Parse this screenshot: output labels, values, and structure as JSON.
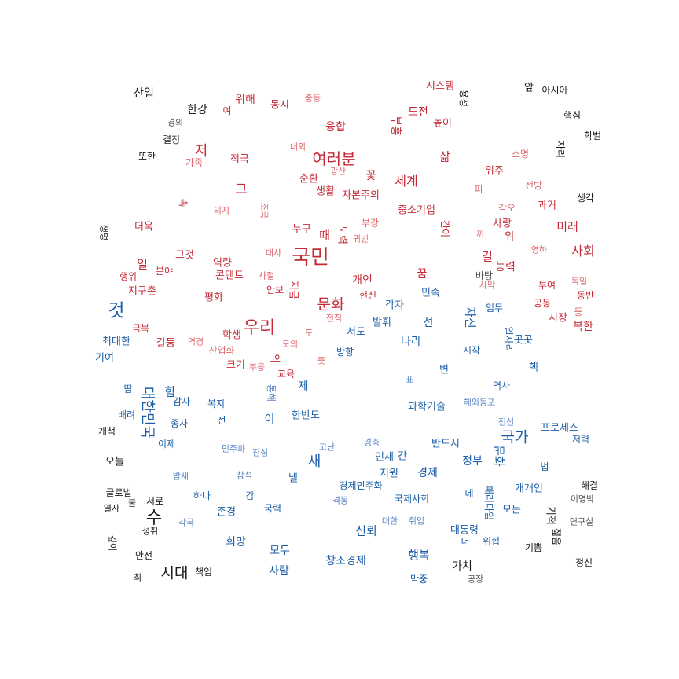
{
  "colors": {
    "red_strong": "#c42a36",
    "red_light": "#de6a70",
    "blue_strong": "#1c5ea8",
    "blue_light": "#5b86c2",
    "neutral": "#1a1a1a",
    "neutral_light": "#555555"
  },
  "words": [
    {
      "t": "국민",
      "c": "red_strong",
      "s": 26
    },
    {
      "t": "우리",
      "c": "red_strong",
      "s": 22
    },
    {
      "t": "여러분",
      "c": "red_strong",
      "s": 20
    },
    {
      "t": "문화",
      "c": "red_strong",
      "s": 19
    },
    {
      "t": "것",
      "c": "blue_strong",
      "s": 23
    },
    {
      "t": "수",
      "c": "neutral",
      "s": 22
    },
    {
      "t": "시대",
      "c": "neutral",
      "s": 19
    },
    {
      "t": "국가",
      "c": "blue_strong",
      "s": 19
    },
    {
      "t": "새",
      "c": "blue_strong",
      "s": 18
    },
    {
      "t": "세계",
      "c": "red_strong",
      "s": 16
    },
    {
      "t": "저",
      "c": "red_strong",
      "s": 18
    },
    {
      "t": "사회",
      "c": "red_strong",
      "s": 16
    },
    {
      "t": "그",
      "c": "red_strong",
      "s": 17
    },
    {
      "t": "삶",
      "c": "red_strong",
      "s": 15
    },
    {
      "t": "도전",
      "c": "red_strong",
      "s": 14
    },
    {
      "t": "위해",
      "c": "red_strong",
      "s": 14
    },
    {
      "t": "융합",
      "c": "red_strong",
      "s": 14
    },
    {
      "t": "시스템",
      "c": "red_strong",
      "s": 13
    },
    {
      "t": "동시",
      "c": "red_strong",
      "s": 13
    },
    {
      "t": "중동",
      "c": "red_light",
      "s": 11
    },
    {
      "t": "높이",
      "c": "red_strong",
      "s": 13
    },
    {
      "t": "적극",
      "c": "red_strong",
      "s": 13
    },
    {
      "t": "가족",
      "c": "red_light",
      "s": 12
    },
    {
      "t": "내외",
      "c": "red_light",
      "s": 11
    },
    {
      "t": "소명",
      "c": "red_light",
      "s": 12
    },
    {
      "t": "순환",
      "c": "red_strong",
      "s": 13
    },
    {
      "t": "광산",
      "c": "red_light",
      "s": 11
    },
    {
      "t": "꽃",
      "c": "red_strong",
      "s": 14
    },
    {
      "t": "위주",
      "c": "red_strong",
      "s": 13
    },
    {
      "t": "생활",
      "c": "red_strong",
      "s": 13
    },
    {
      "t": "자본주의",
      "c": "red_strong",
      "s": 13
    },
    {
      "t": "전방",
      "c": "red_light",
      "s": 12
    },
    {
      "t": "피",
      "c": "red_light",
      "s": 12
    },
    {
      "t": "과거",
      "c": "red_strong",
      "s": 13
    },
    {
      "t": "의지",
      "c": "red_light",
      "s": 11
    },
    {
      "t": "각오",
      "c": "red_light",
      "s": 12
    },
    {
      "t": "중소기업",
      "c": "red_strong",
      "s": 13
    },
    {
      "t": "부강",
      "c": "red_light",
      "s": 12
    },
    {
      "t": "사랑",
      "c": "red_strong",
      "s": 13
    },
    {
      "t": "미래",
      "c": "red_strong",
      "s": 15
    },
    {
      "t": "더욱",
      "c": "red_strong",
      "s": 13
    },
    {
      "t": "누구",
      "c": "red_strong",
      "s": 13
    },
    {
      "t": "때",
      "c": "red_strong",
      "s": 15
    },
    {
      "t": "귀빈",
      "c": "red_light",
      "s": 11
    },
    {
      "t": "끼",
      "c": "red_light",
      "s": 11
    },
    {
      "t": "위",
      "c": "red_strong",
      "s": 14
    },
    {
      "t": "대사",
      "c": "red_light",
      "s": 11
    },
    {
      "t": "그것",
      "c": "red_strong",
      "s": 13
    },
    {
      "t": "영하",
      "c": "red_light",
      "s": 11
    },
    {
      "t": "일",
      "c": "red_strong",
      "s": 15
    },
    {
      "t": "역량",
      "c": "red_strong",
      "s": 13
    },
    {
      "t": "길",
      "c": "red_strong",
      "s": 15
    },
    {
      "t": "능력",
      "c": "red_strong",
      "s": 14
    },
    {
      "t": "행위",
      "c": "red_strong",
      "s": 12
    },
    {
      "t": "분야",
      "c": "red_strong",
      "s": 12
    },
    {
      "t": "콘텐트",
      "c": "red_strong",
      "s": 13
    },
    {
      "t": "사절",
      "c": "red_light",
      "s": 11
    },
    {
      "t": "꿈",
      "c": "red_strong",
      "s": 14
    },
    {
      "t": "바탕",
      "c": "neutral_light",
      "s": 12
    },
    {
      "t": "사막",
      "c": "red_light",
      "s": 11
    },
    {
      "t": "독일",
      "c": "red_light",
      "s": 11
    },
    {
      "t": "개인",
      "c": "red_strong",
      "s": 14
    },
    {
      "t": "부여",
      "c": "red_strong",
      "s": 12
    },
    {
      "t": "지구촌",
      "c": "red_strong",
      "s": 13
    },
    {
      "t": "안보",
      "c": "red_strong",
      "s": 12
    },
    {
      "t": "현신",
      "c": "red_strong",
      "s": 12
    },
    {
      "t": "동반",
      "c": "red_strong",
      "s": 12
    },
    {
      "t": "평화",
      "c": "red_strong",
      "s": 13
    },
    {
      "t": "공동",
      "c": "red_strong",
      "s": 12
    },
    {
      "t": "임무",
      "c": "blue_strong",
      "s": 12
    },
    {
      "t": "등",
      "c": "red_light",
      "s": 12
    },
    {
      "t": "시장",
      "c": "red_strong",
      "s": 13
    },
    {
      "t": "극복",
      "c": "red_strong",
      "s": 12
    },
    {
      "t": "전직",
      "c": "red_light",
      "s": 11
    },
    {
      "t": "북한",
      "c": "red_strong",
      "s": 14
    },
    {
      "t": "학생",
      "c": "red_strong",
      "s": 13
    },
    {
      "t": "도",
      "c": "red_light",
      "s": 12
    },
    {
      "t": "서도",
      "c": "blue_strong",
      "s": 13
    },
    {
      "t": "최대한",
      "c": "blue_strong",
      "s": 13
    },
    {
      "t": "갈등",
      "c": "red_strong",
      "s": 13
    },
    {
      "t": "역경",
      "c": "red_light",
      "s": 11
    },
    {
      "t": "산업화",
      "c": "red_light",
      "s": 12
    },
    {
      "t": "도의",
      "c": "red_light",
      "s": 11
    },
    {
      "t": "방향",
      "c": "blue_strong",
      "s": 12
    },
    {
      "t": "시작",
      "c": "blue_strong",
      "s": 12
    },
    {
      "t": "곳곳",
      "c": "blue_strong",
      "s": 13
    },
    {
      "t": "크기",
      "c": "red_strong",
      "s": 13
    },
    {
      "t": "부응",
      "c": "red_light",
      "s": 11
    },
    {
      "t": "뜻",
      "c": "red_light",
      "s": 11
    },
    {
      "t": "기여",
      "c": "blue_strong",
      "s": 13
    },
    {
      "t": "핵",
      "c": "blue_strong",
      "s": 13
    },
    {
      "t": "교육",
      "c": "red_strong",
      "s": 12
    },
    {
      "t": "변",
      "c": "blue_strong",
      "s": 13
    },
    {
      "t": "표",
      "c": "blue_light",
      "s": 11
    },
    {
      "t": "역사",
      "c": "blue_strong",
      "s": 12
    },
    {
      "t": "땀",
      "c": "blue_strong",
      "s": 12
    },
    {
      "t": "힘",
      "c": "blue_strong",
      "s": 15
    },
    {
      "t": "제",
      "c": "blue_strong",
      "s": 14
    },
    {
      "t": "감사",
      "c": "blue_strong",
      "s": 12
    },
    {
      "t": "복지",
      "c": "blue_strong",
      "s": 12
    },
    {
      "t": "과학기술",
      "c": "blue_strong",
      "s": 13
    },
    {
      "t": "해외동포",
      "c": "blue_light",
      "s": 11
    },
    {
      "t": "배려",
      "c": "blue_strong",
      "s": 12
    },
    {
      "t": "한반도",
      "c": "blue_strong",
      "s": 13
    },
    {
      "t": "이",
      "c": "blue_strong",
      "s": 14
    },
    {
      "t": "전",
      "c": "blue_strong",
      "s": 12
    },
    {
      "t": "종사",
      "c": "blue_strong",
      "s": 12
    },
    {
      "t": "전선",
      "c": "blue_light",
      "s": 11
    },
    {
      "t": "프로세스",
      "c": "blue_strong",
      "s": 13
    },
    {
      "t": "개척",
      "c": "neutral",
      "s": 12
    },
    {
      "t": "이제",
      "c": "blue_strong",
      "s": 12
    },
    {
      "t": "저력",
      "c": "blue_strong",
      "s": 12
    },
    {
      "t": "민주화",
      "c": "blue_light",
      "s": 11
    },
    {
      "t": "진심",
      "c": "blue_light",
      "s": 11
    },
    {
      "t": "고난",
      "c": "blue_light",
      "s": 11
    },
    {
      "t": "경축",
      "c": "blue_light",
      "s": 11
    },
    {
      "t": "반드시",
      "c": "blue_strong",
      "s": 13
    },
    {
      "t": "오늘",
      "c": "neutral",
      "s": 13
    },
    {
      "t": "인재",
      "c": "blue_strong",
      "s": 13
    },
    {
      "t": "간",
      "c": "blue_strong",
      "s": 13
    },
    {
      "t": "정부",
      "c": "blue_strong",
      "s": 14
    },
    {
      "t": "법",
      "c": "blue_strong",
      "s": 12
    },
    {
      "t": "밤새",
      "c": "blue_light",
      "s": 11
    },
    {
      "t": "참석",
      "c": "blue_light",
      "s": 11
    },
    {
      "t": "낼",
      "c": "blue_strong",
      "s": 13
    },
    {
      "t": "지원",
      "c": "blue_strong",
      "s": 13
    },
    {
      "t": "경제",
      "c": "blue_strong",
      "s": 14
    },
    {
      "t": "해결",
      "c": "neutral",
      "s": 12
    },
    {
      "t": "경제민주화",
      "c": "blue_strong",
      "s": 12
    },
    {
      "t": "개개인",
      "c": "blue_strong",
      "s": 13
    },
    {
      "t": "글로벌",
      "c": "neutral",
      "s": 12
    },
    {
      "t": "하나",
      "c": "blue_strong",
      "s": 12
    },
    {
      "t": "감",
      "c": "blue_strong",
      "s": 12
    },
    {
      "t": "데",
      "c": "blue_strong",
      "s": 12
    },
    {
      "t": "이명박",
      "c": "neutral_light",
      "s": 11
    },
    {
      "t": "열사",
      "c": "neutral",
      "s": 11
    },
    {
      "t": "불",
      "c": "neutral",
      "s": 11
    },
    {
      "t": "서로",
      "c": "neutral",
      "s": 12
    },
    {
      "t": "격동",
      "c": "blue_light",
      "s": 11
    },
    {
      "t": "국제사회",
      "c": "blue_strong",
      "s": 12
    },
    {
      "t": "모든",
      "c": "blue_strong",
      "s": 13
    },
    {
      "t": "존경",
      "c": "blue_strong",
      "s": 13
    },
    {
      "t": "국력",
      "c": "blue_strong",
      "s": 12
    },
    {
      "t": "각국",
      "c": "blue_light",
      "s": 11
    },
    {
      "t": "대한",
      "c": "blue_light",
      "s": 11
    },
    {
      "t": "취임",
      "c": "blue_light",
      "s": 11
    },
    {
      "t": "연구실",
      "c": "neutral_light",
      "s": 11
    },
    {
      "t": "성취",
      "c": "neutral",
      "s": 11
    },
    {
      "t": "신뢰",
      "c": "blue_strong",
      "s": 15
    },
    {
      "t": "대통령",
      "c": "blue_strong",
      "s": 13
    },
    {
      "t": "희망",
      "c": "blue_strong",
      "s": 14
    },
    {
      "t": "더",
      "c": "blue_strong",
      "s": 12
    },
    {
      "t": "위협",
      "c": "blue_strong",
      "s": 12
    },
    {
      "t": "기쁨",
      "c": "neutral",
      "s": 12
    },
    {
      "t": "모두",
      "c": "blue_strong",
      "s": 14
    },
    {
      "t": "행복",
      "c": "blue_strong",
      "s": 15
    },
    {
      "t": "안전",
      "c": "neutral",
      "s": 12
    },
    {
      "t": "창조경제",
      "c": "blue_strong",
      "s": 14
    },
    {
      "t": "정신",
      "c": "neutral",
      "s": 12
    },
    {
      "t": "책임",
      "c": "neutral",
      "s": 12
    },
    {
      "t": "사람",
      "c": "blue_strong",
      "s": 14
    },
    {
      "t": "가치",
      "c": "neutral",
      "s": 14
    },
    {
      "t": "최",
      "c": "neutral",
      "s": 11
    },
    {
      "t": "막중",
      "c": "blue_strong",
      "s": 12
    },
    {
      "t": "공장",
      "c": "neutral_light",
      "s": 11
    },
    {
      "t": "산업",
      "c": "neutral",
      "s": 14
    },
    {
      "t": "한강",
      "c": "neutral",
      "s": 14
    },
    {
      "t": "여",
      "c": "red_strong",
      "s": 12
    },
    {
      "t": "경의",
      "c": "neutral_light",
      "s": 11
    },
    {
      "t": "결정",
      "c": "neutral",
      "s": 12
    },
    {
      "t": "또한",
      "c": "neutral",
      "s": 12
    },
    {
      "t": "앞",
      "c": "neutral",
      "s": 13
    },
    {
      "t": "아시아",
      "c": "neutral",
      "s": 12
    },
    {
      "t": "핵심",
      "c": "neutral",
      "s": 12
    },
    {
      "t": "학벌",
      "c": "neutral",
      "s": 12
    },
    {
      "t": "생각",
      "c": "neutral",
      "s": 12
    },
    {
      "t": "자리",
      "c": "neutral",
      "s": 12
    },
    {
      "t": "용성",
      "c": "neutral",
      "s": 12
    },
    {
      "t": "부흥",
      "c": "red_strong",
      "s": 14
    },
    {
      "t": "생명",
      "c": "neutral",
      "s": 11
    },
    {
      "t": "속",
      "c": "red_strong",
      "s": 12
    },
    {
      "t": "조국",
      "c": "red_light",
      "s": 11
    },
    {
      "t": "간이",
      "c": "red_strong",
      "s": 12
    },
    {
      "t": "노력",
      "c": "red_strong",
      "s": 13
    },
    {
      "t": "지금",
      "c": "red_strong",
      "s": 13
    },
    {
      "t": "자신",
      "c": "blue_strong",
      "s": 15
    },
    {
      "t": "일자리",
      "c": "blue_strong",
      "s": 12
    },
    {
      "t": "의",
      "c": "red_strong",
      "s": 13
    },
    {
      "t": "통해",
      "c": "blue_light",
      "s": 12
    },
    {
      "t": "대한민국",
      "c": "blue_strong",
      "s": 18
    },
    {
      "t": "문화",
      "c": "blue_strong",
      "s": 15
    },
    {
      "t": "패러다임",
      "c": "blue_strong",
      "s": 12
    },
    {
      "t": "기적",
      "c": "neutral",
      "s": 13
    },
    {
      "t": "젊음",
      "c": "neutral",
      "s": 12
    },
    {
      "t": "깊이",
      "c": "neutral",
      "s": 11
    },
    {
      "t": "발휘",
      "c": "blue_strong",
      "s": 13
    },
    {
      "t": "선",
      "c": "blue_strong",
      "s": 14
    },
    {
      "t": "나라",
      "c": "blue_strong",
      "s": 14
    },
    {
      "t": "각자",
      "c": "blue_strong",
      "s": 13
    },
    {
      "t": "민족",
      "c": "blue_strong",
      "s": 13
    }
  ]
}
